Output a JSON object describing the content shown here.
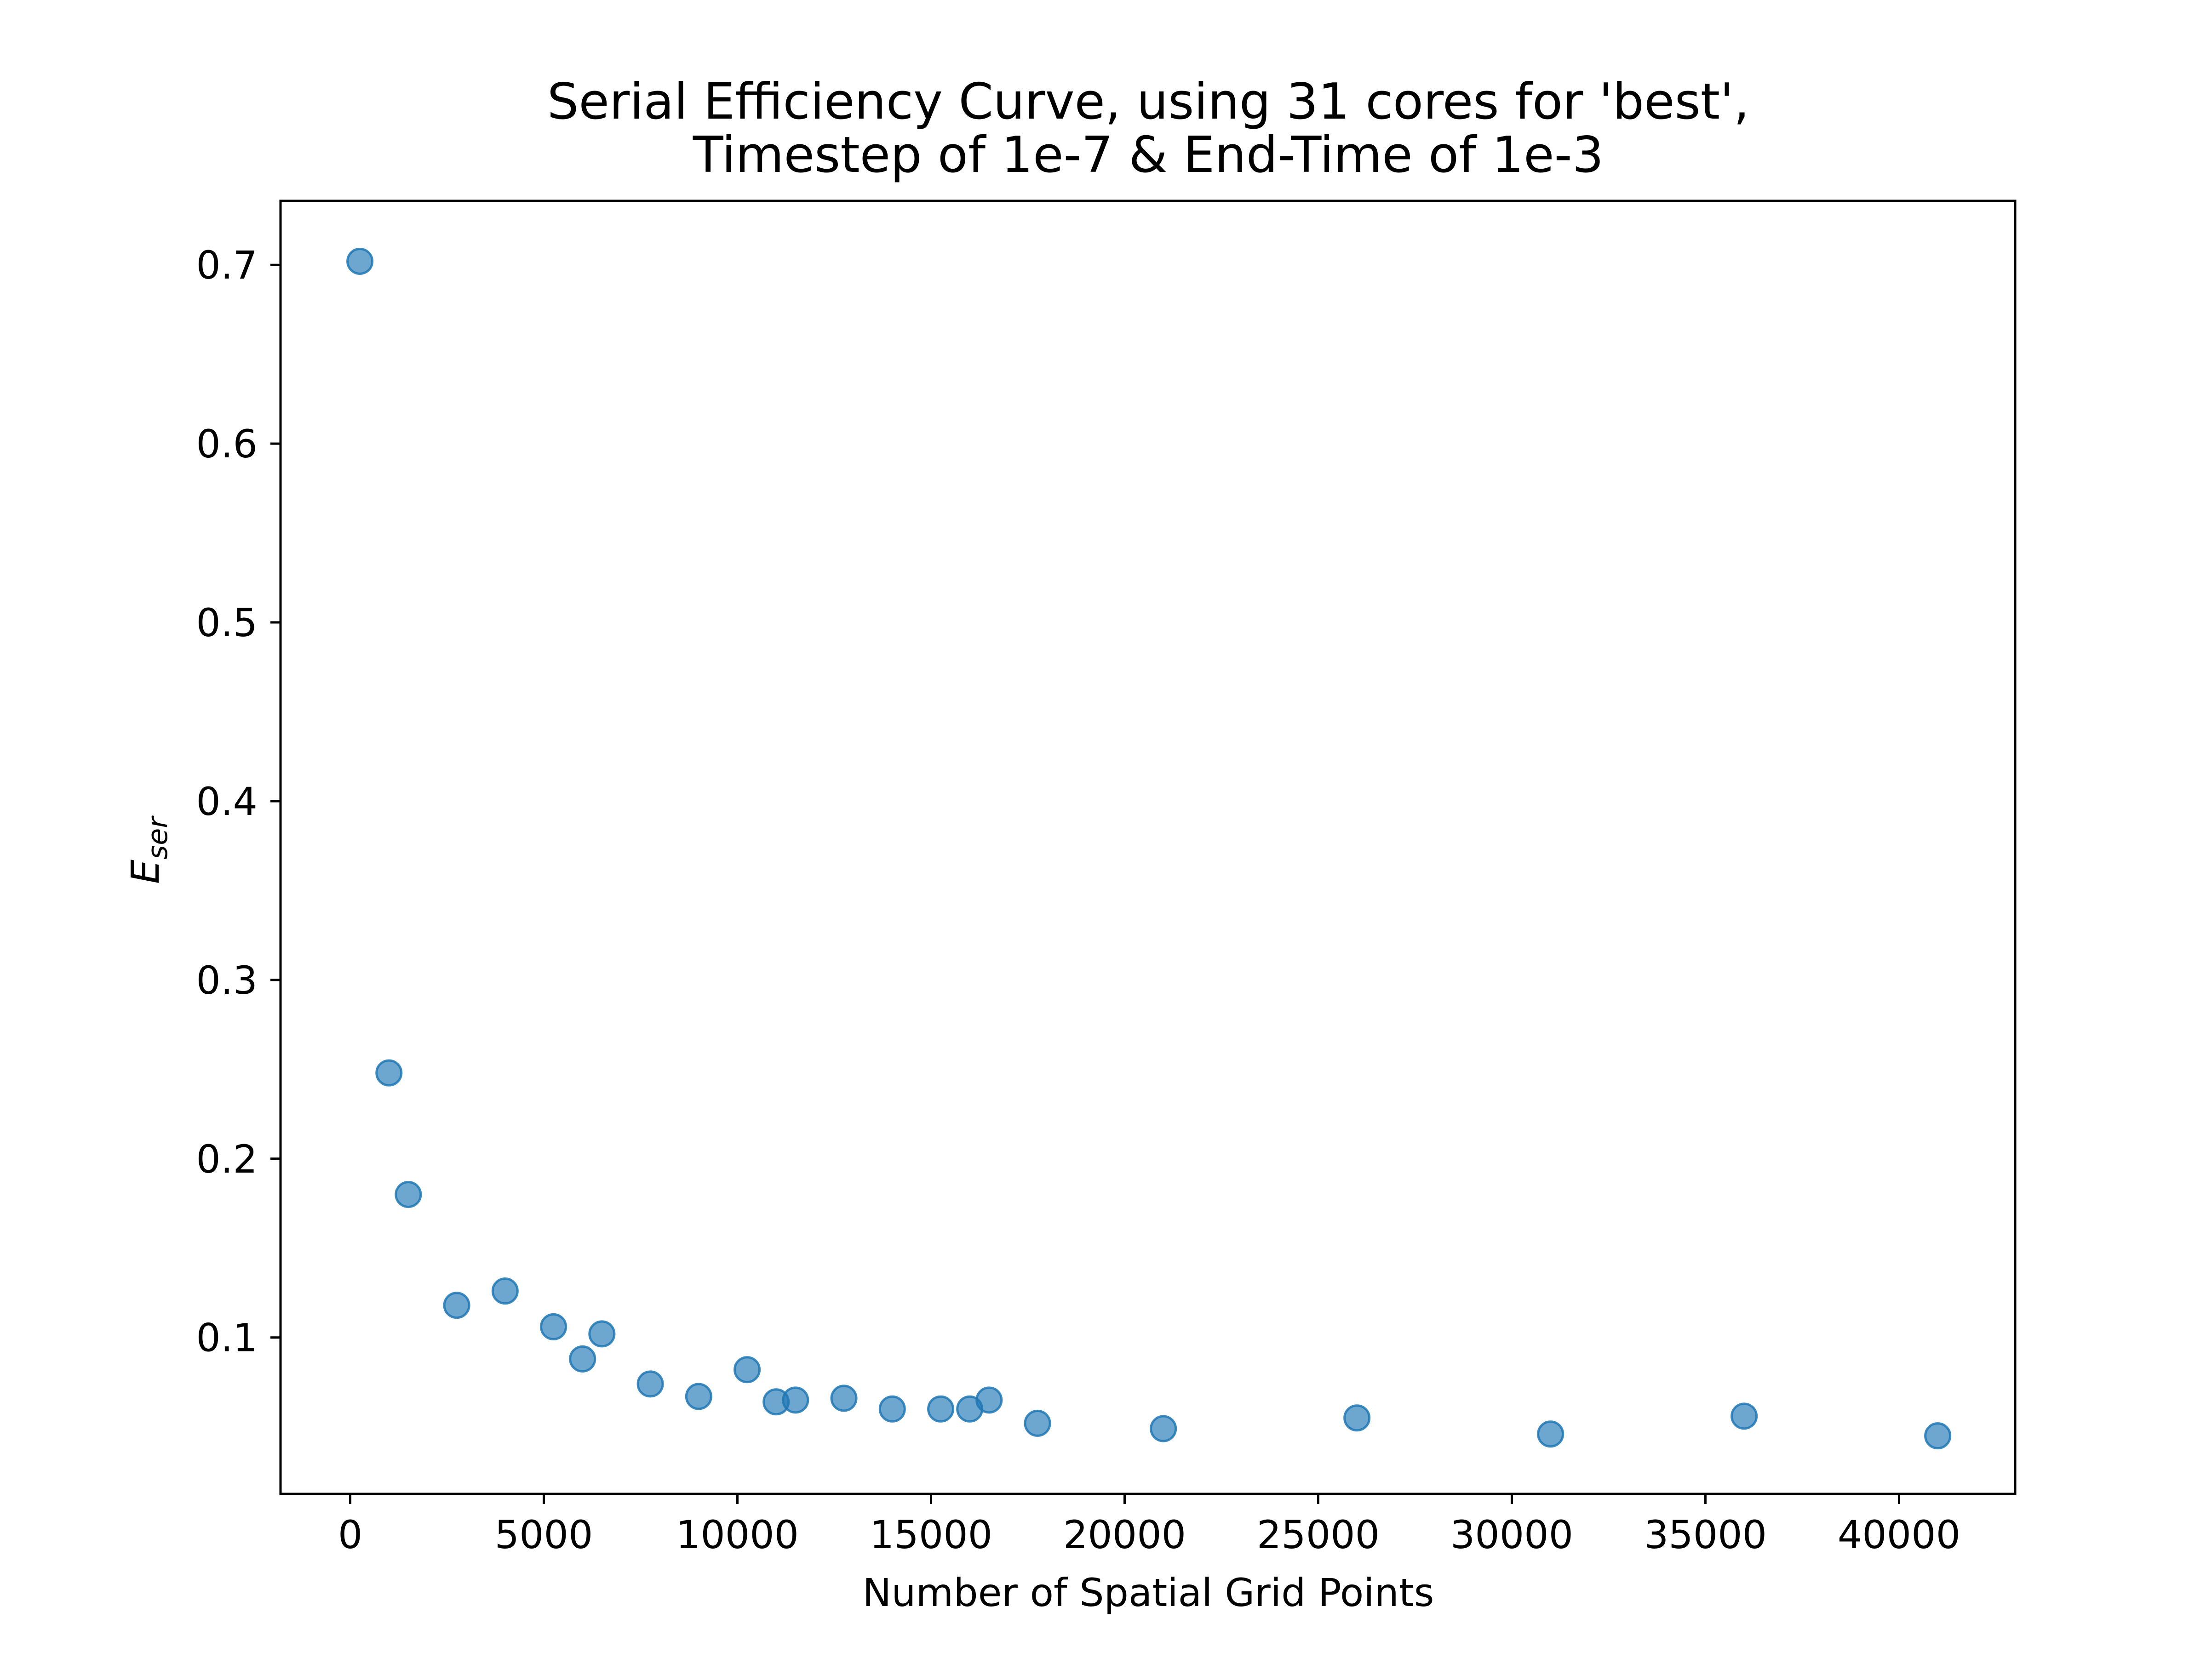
{
  "chart_data": {
    "type": "scatter",
    "title_lines": [
      "Serial Efficiency Curve, using 31 cores for 'best',",
      "Timestep of 1e-7 & End-Time of 1e-3"
    ],
    "xlabel": "Number of Spatial Grid Points",
    "ylabel_main": "E",
    "ylabel_sub": "ser",
    "xlim": [
      -1800,
      43000
    ],
    "ylim": [
      0.0125,
      0.7358
    ],
    "xticks": [
      0,
      5000,
      10000,
      15000,
      20000,
      25000,
      30000,
      35000,
      40000
    ],
    "xtick_labels": [
      "0",
      "5000",
      "10000",
      "15000",
      "20000",
      "25000",
      "30000",
      "35000",
      "40000"
    ],
    "yticks": [
      0.1,
      0.2,
      0.3,
      0.4,
      0.5,
      0.6,
      0.7
    ],
    "ytick_labels": [
      "0.1",
      "0.2",
      "0.3",
      "0.4",
      "0.5",
      "0.6",
      "0.7"
    ],
    "grid": false,
    "marker_color": "#1f77b4",
    "marker_opacity": 0.65,
    "points": [
      {
        "x": 250,
        "y": 0.702
      },
      {
        "x": 1000,
        "y": 0.248
      },
      {
        "x": 1500,
        "y": 0.18
      },
      {
        "x": 2750,
        "y": 0.118
      },
      {
        "x": 4000,
        "y": 0.126
      },
      {
        "x": 5250,
        "y": 0.106
      },
      {
        "x": 6000,
        "y": 0.088
      },
      {
        "x": 6500,
        "y": 0.102
      },
      {
        "x": 7750,
        "y": 0.074
      },
      {
        "x": 9000,
        "y": 0.067
      },
      {
        "x": 10250,
        "y": 0.082
      },
      {
        "x": 11000,
        "y": 0.064
      },
      {
        "x": 11500,
        "y": 0.065
      },
      {
        "x": 12750,
        "y": 0.066
      },
      {
        "x": 14000,
        "y": 0.06
      },
      {
        "x": 15250,
        "y": 0.06
      },
      {
        "x": 16000,
        "y": 0.06
      },
      {
        "x": 16500,
        "y": 0.065
      },
      {
        "x": 17750,
        "y": 0.052
      },
      {
        "x": 21000,
        "y": 0.049
      },
      {
        "x": 26000,
        "y": 0.055
      },
      {
        "x": 31000,
        "y": 0.046
      },
      {
        "x": 36000,
        "y": 0.056
      },
      {
        "x": 41000,
        "y": 0.045
      }
    ]
  }
}
